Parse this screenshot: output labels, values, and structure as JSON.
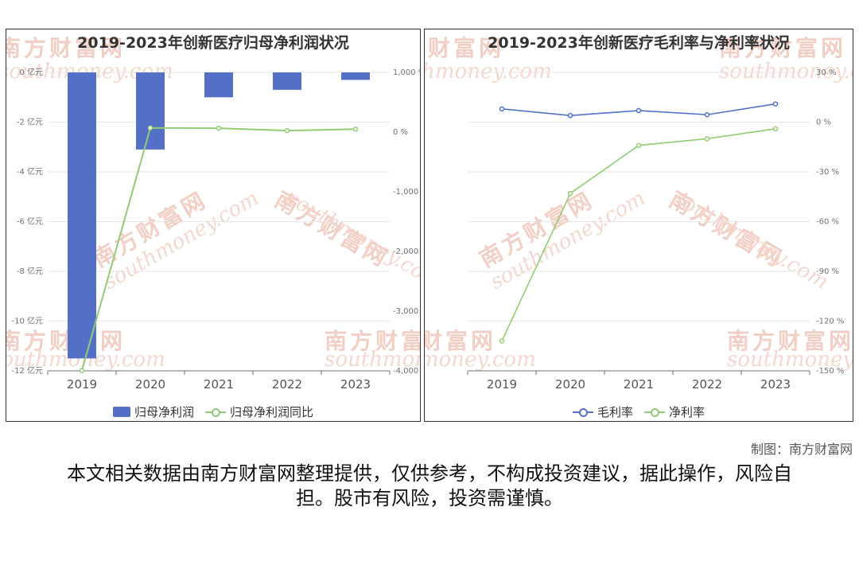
{
  "watermark": {
    "cn": "南方财富网",
    "en": "southmoney.com"
  },
  "colors": {
    "bar": "#5470c6",
    "net_growth": "#91cc75",
    "gross": "#5470c6",
    "net": "#91cc75",
    "grid": "#e6e6e6",
    "axis_text": "#6e7079"
  },
  "chart_data": [
    {
      "type": "bar",
      "title": "2019-2023年创新医疗归母净利润状况",
      "categories": [
        "2019",
        "2020",
        "2021",
        "2022",
        "2023"
      ],
      "left_axis": {
        "ylim": [
          -12,
          0
        ],
        "ticks": [
          0,
          -2,
          -4,
          -6,
          -8,
          -10,
          -12
        ],
        "unit": "亿元"
      },
      "right_axis": {
        "ylim": [
          -4000,
          1000
        ],
        "ticks": [
          1000,
          0,
          -1000,
          -2000,
          -3000,
          -4000
        ],
        "unit": "%"
      },
      "series": [
        {
          "name": "归母净利润",
          "type": "bar",
          "axis": "left",
          "values": [
            -11.5,
            -3.1,
            -1.0,
            -0.7,
            -0.3
          ]
        },
        {
          "name": "归母净利润同比",
          "type": "line",
          "axis": "right",
          "values": [
            -3995,
            70,
            65,
            25,
            50
          ]
        }
      ],
      "legend": "bottom"
    },
    {
      "type": "line",
      "title": "2019-2023年创新医疗毛利率与净利率状况",
      "categories": [
        "2019",
        "2020",
        "2021",
        "2022",
        "2023"
      ],
      "right_axis": {
        "ylim": [
          -150,
          30
        ],
        "ticks": [
          30,
          0,
          -30,
          -60,
          -90,
          -120,
          -150
        ],
        "unit": "%"
      },
      "series": [
        {
          "name": "毛利率",
          "values": [
            8,
            4,
            7,
            4.5,
            11
          ]
        },
        {
          "name": "净利率",
          "values": [
            -132,
            -43,
            -14,
            -10,
            -4
          ]
        }
      ],
      "legend": "bottom"
    }
  ],
  "footer": {
    "credit": "制图：南方财富网",
    "disclaimer": "本文相关数据由南方财富网整理提供，仅供参考，不构成投资建议，据此操作，风险自担。股市有风险，投资需谨慎。"
  }
}
